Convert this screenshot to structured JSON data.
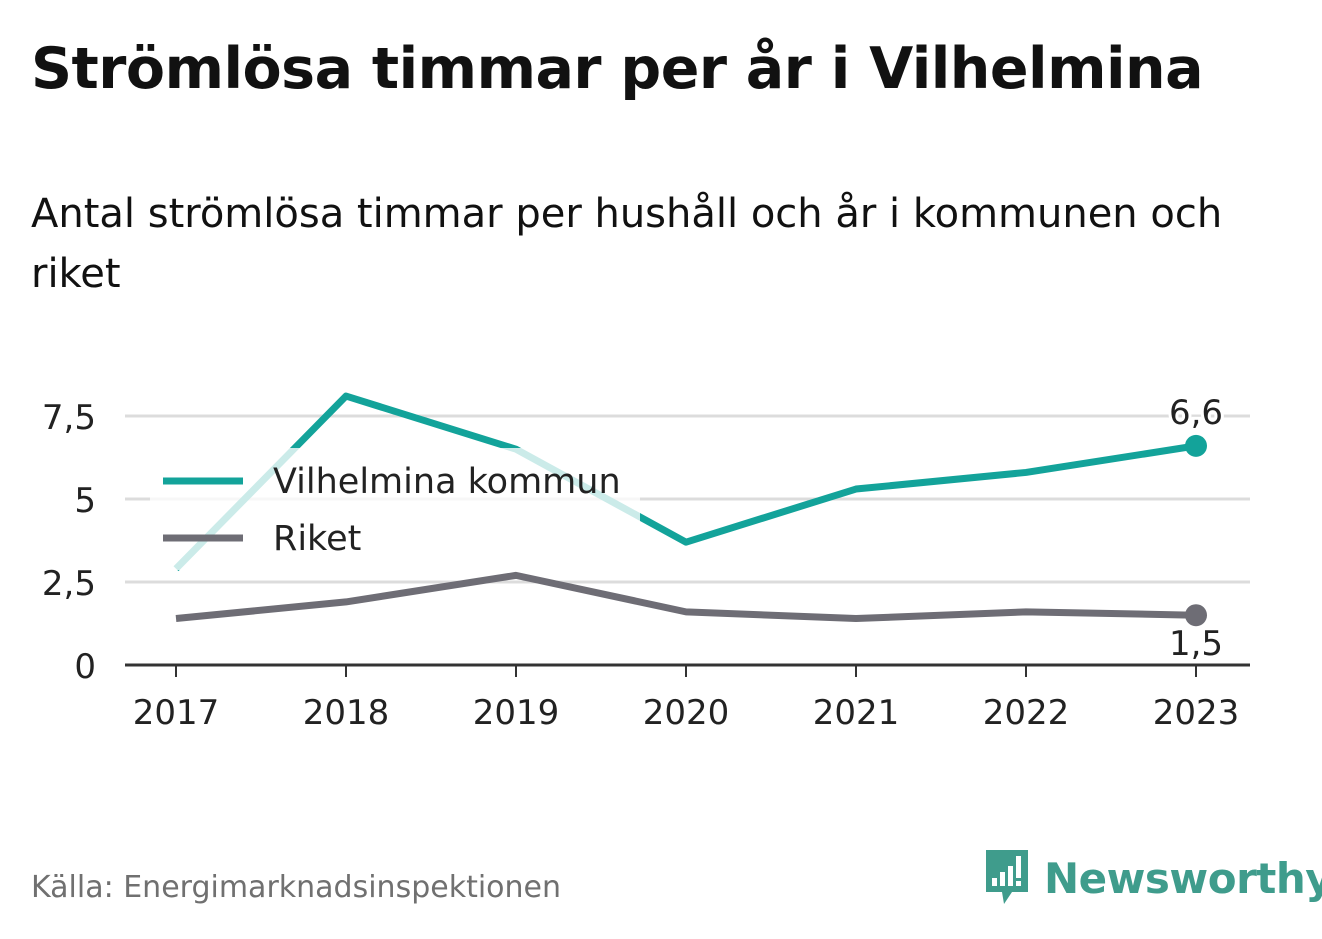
{
  "title": "Strömlösa timmar per år i Vilhelmina",
  "subtitle": "Antal strömlösa timmar per hushåll och år i kommunen och riket",
  "source": "Källa: Energimarknadsinspektionen",
  "brand": {
    "name": "Newsworthy",
    "icon": "newsworthy-logo-icon",
    "color": "#3f9c8c"
  },
  "chart_data": {
    "type": "line",
    "x": [
      "2017",
      "2018",
      "2019",
      "2020",
      "2021",
      "2022",
      "2023"
    ],
    "yticks": [
      "0",
      "2,5",
      "5",
      "7,5"
    ],
    "ytick_values": [
      0,
      2.5,
      5,
      7.5
    ],
    "ylim": [
      0,
      8.5
    ],
    "grid": true,
    "legend_position": "top-left",
    "series": [
      {
        "name": "Vilhelmina kommun",
        "color": "#13a39a",
        "values": [
          2.9,
          8.1,
          6.5,
          3.7,
          5.3,
          5.8,
          6.6
        ],
        "end_label": "6,6"
      },
      {
        "name": "Riket",
        "color": "#6e6d75",
        "values": [
          1.4,
          1.9,
          2.7,
          1.6,
          1.4,
          1.6,
          1.5
        ],
        "end_label": "1,5"
      }
    ]
  }
}
